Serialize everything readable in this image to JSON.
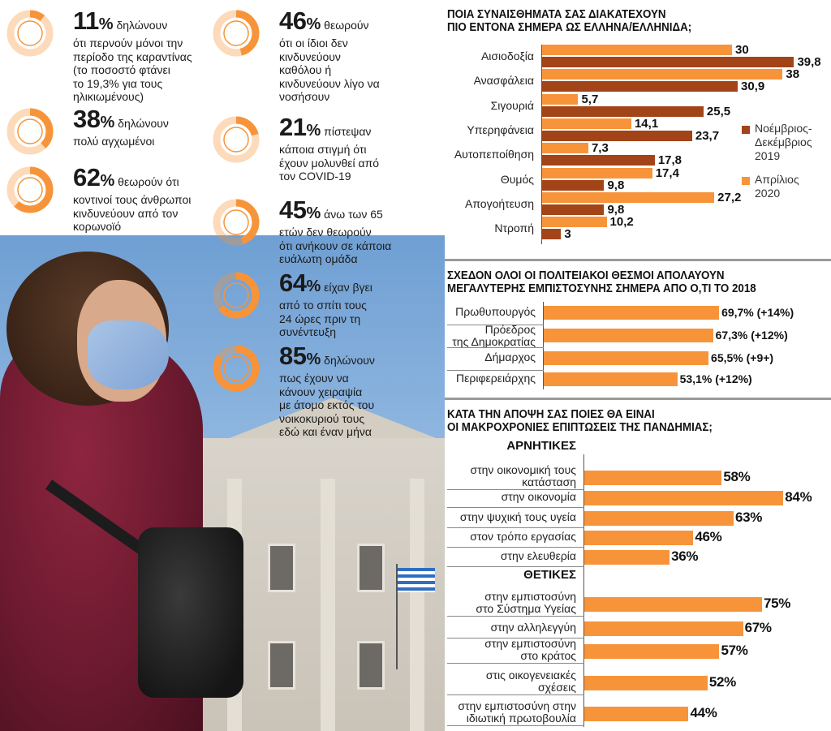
{
  "colors": {
    "orange": "#f7943a",
    "brown": "#a24417",
    "text": "#1b1b1b"
  },
  "stats": [
    {
      "value": "11",
      "unit": "%",
      "fraction": 0.11,
      "lines": [
        "δηλώνουν",
        "ότι περνούν μόνοι την",
        "περίοδο της καραντίνας",
        "(το ποσοστό φτάνει",
        "το 19,3% για τους",
        "ηλικιωμένους)"
      ]
    },
    {
      "value": "38",
      "unit": "%",
      "fraction": 0.38,
      "lines": [
        "δηλώνουν",
        "πολύ αγχωμένοι"
      ]
    },
    {
      "value": "62",
      "unit": "%",
      "fraction": 0.62,
      "lines": [
        "θεωρούν ότι",
        "κοντινοί τους άνθρωποι",
        "κινδυνεύουν από τον",
        "κορωνοϊό"
      ]
    },
    {
      "value": "46",
      "unit": "%",
      "fraction": 0.46,
      "lines": [
        "θεωρούν",
        "ότι οι ίδιοι δεν",
        "κινδυνεύουν",
        "καθόλου ή",
        "κινδυνεύουν λίγο να",
        "νοσήσουν"
      ]
    },
    {
      "value": "21",
      "unit": "%",
      "fraction": 0.21,
      "lines": [
        "πίστεψαν",
        "κάποια στιγμή ότι",
        "έχουν μολυνθεί από",
        "τον COVID-19"
      ]
    },
    {
      "value": "45",
      "unit": "%",
      "fraction": 0.45,
      "lines": [
        "άνω των 65",
        "ετών δεν θεωρούν",
        "ότι ανήκουν σε κάποια",
        "ευάλωτη ομάδα"
      ]
    },
    {
      "value": "64",
      "unit": "%",
      "fraction": 0.64,
      "lines": [
        "είχαν βγει",
        "από το σπίτι τους",
        "24 ώρες πριν τη",
        "συνέντευξη"
      ]
    },
    {
      "value": "85",
      "unit": "%",
      "fraction": 0.85,
      "lines": [
        "δηλώνουν",
        "πως έχουν να",
        "κάνουν χειραψία",
        "με άτομο εκτός του",
        "νοικοκυριού τους",
        "εδώ και έναν μήνα"
      ]
    }
  ],
  "chart_data": [
    {
      "type": "bar",
      "orientation": "horizontal",
      "title": "ΠΟΙΑ ΣΥΝΑΙΣΘΗΜΑΤΑ ΣΑΣ ΔΙΑΚΑΤΕΧΟΥΝ ΠΙΟ ΕΝΤΟΝΑ ΣΗΜΕΡΑ ΩΣ ΕΛΛΗΝΑ/ΕΛΛΗΝΙΔΑ;",
      "categories": [
        "Αισιοδοξία",
        "Ανασφάλεια",
        "Σιγουριά",
        "Υπερηφάνεια",
        "Αυτοπεποίθηση",
        "Θυμός",
        "Απογοήτευση",
        "Ντροπή"
      ],
      "series": [
        {
          "name": "Απρίλιος 2020",
          "values": [
            30,
            38,
            5.7,
            14.1,
            7.3,
            17.4,
            27.2,
            10.2
          ]
        },
        {
          "name": "Νοέμβριος-Δεκέμβριος 2019",
          "values": [
            39.8,
            30.9,
            25.5,
            23.7,
            17.8,
            9.8,
            9.8,
            3
          ]
        }
      ],
      "value_labels": [
        [
          "30",
          "39,8"
        ],
        [
          "38",
          "30,9"
        ],
        [
          "5,7",
          "25,5"
        ],
        [
          "14,1",
          "23,7"
        ],
        [
          "7,3",
          "17,8"
        ],
        [
          "17,4",
          "9,8"
        ],
        [
          "27,2",
          "9,8"
        ],
        [
          "10,2",
          "3"
        ]
      ],
      "legend": [
        {
          "lines": [
            "Νοέμβριος-",
            "Δεκέμβριος",
            "2019"
          ]
        },
        {
          "lines": [
            "Απρίλιος",
            "2020"
          ]
        }
      ],
      "legend_position": "right",
      "xlim": [
        0,
        40
      ]
    },
    {
      "type": "bar",
      "orientation": "horizontal",
      "title": "ΣΧΕΔΟΝ ΟΛΟΙ ΟΙ ΠΟΛΙΤΕΙΑΚΟΙ ΘΕΣΜΟΙ ΑΠΟΛΑΥΟΥΝ ΜΕΓΑΛΥΤΕΡΗΣ ΕΜΠΙΣΤΟΣΥΝΗΣ ΣΗΜΕΡΑ ΑΠΟ Ο,ΤΙ ΤΟ 2018",
      "categories": [
        [
          "Πρωθυπουργός"
        ],
        [
          "Πρόεδρος",
          "της Δημοκρατίας"
        ],
        [
          "Δήμαρχος"
        ],
        [
          "Περιφερειάρχης"
        ]
      ],
      "values": [
        69.7,
        67.3,
        65.5,
        53.1
      ],
      "value_labels": [
        "69,7% (+14%)",
        "67,3% (+12%)",
        "65,5% (+9+)",
        "53,1% (+12%)"
      ],
      "xlim": [
        0,
        100
      ]
    },
    {
      "type": "bar",
      "orientation": "horizontal",
      "title": "ΚΑΤΑ ΤΗΝ ΑΠΟΨΗ ΣΑΣ ΠΟΙΕΣ ΘΑ ΕΙΝΑΙ ΟΙ ΜΑΚΡΟΧΡΟΝΙΕΣ ΕΠΙΠΤΩΣΕΙΣ ΤΗΣ ΠΑΝΔΗΜΙΑΣ;",
      "groups": [
        {
          "name": "ΑΡΝΗΤΙΚΕΣ",
          "categories": [
            [
              "στην οικονομική τους",
              "κατάσταση"
            ],
            [
              "στην οικονομία"
            ],
            [
              "στην ψυχική τους υγεία"
            ],
            [
              "στον τρόπο εργασίας"
            ],
            [
              "στην ελευθερία"
            ]
          ],
          "values": [
            58,
            84,
            63,
            46,
            36
          ],
          "value_labels": [
            "58%",
            "84%",
            "63%",
            "46%",
            "36%"
          ]
        },
        {
          "name": "ΘΕΤΙΚΕΣ",
          "categories": [
            [
              "στην εμπιστοσύνη",
              "στο Σύστημα Υγείας"
            ],
            [
              "στην αλληλεγγύη"
            ],
            [
              "στην εμπιστοσύνη",
              "στο κράτος"
            ],
            [
              "στις οικογενειακές",
              "σχέσεις"
            ],
            [
              "στην εμπιστοσύνη στην",
              "ιδιωτική πρωτοβουλία"
            ]
          ],
          "values": [
            75,
            67,
            57,
            52,
            44
          ],
          "value_labels": [
            "75%",
            "67%",
            "57%",
            "52%",
            "44%"
          ]
        }
      ],
      "xlim": [
        0,
        100
      ]
    }
  ]
}
